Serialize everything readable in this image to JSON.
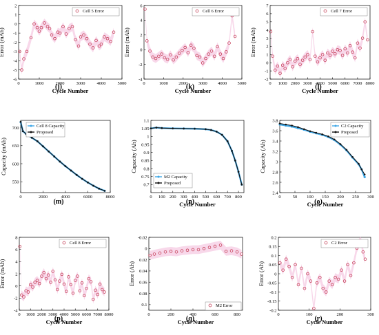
{
  "colors": {
    "error_marker": "#c0304a",
    "error_band": "#f3b8d8",
    "capacity_blue": "#3fa7e6",
    "proposed_black": "#111111"
  },
  "chart_data": [
    {
      "panel": "(j)",
      "type": "scatter",
      "legend": [
        "Cell 5 Error"
      ],
      "xlabel": "Cycle Number",
      "ylabel": "Error (mAh)",
      "xlim": [
        0,
        5000
      ],
      "ylim": [
        -6,
        2
      ],
      "xticks": [
        0,
        1000,
        2000,
        3000,
        4000,
        5000
      ],
      "yticks": [
        -6,
        -5,
        -4,
        -3,
        -2,
        -1,
        0,
        1,
        2
      ],
      "x": [
        50,
        150,
        250,
        400,
        600,
        750,
        900,
        1000,
        1100,
        1250,
        1400,
        1500,
        1600,
        1750,
        1900,
        2000,
        2150,
        2300,
        2450,
        2600,
        2750,
        2900,
        3000,
        3150,
        3300,
        3450,
        3600,
        3750,
        3900,
        4000,
        4150,
        4300,
        4450,
        4600
      ],
      "y": [
        -3.0,
        -5.0,
        -3.8,
        -3.0,
        -1.5,
        0.0,
        -0.4,
        -0.8,
        -0.4,
        0.1,
        -0.3,
        -0.5,
        -1.2,
        -1.6,
        -0.9,
        -1.0,
        -0.3,
        -1.1,
        -0.5,
        -0.3,
        -1.7,
        -2.4,
        -1.4,
        -1.2,
        -1.6,
        -2.2,
        -2.6,
        -1.8,
        -2.4,
        -2.2,
        -1.4,
        -1.6,
        -1.9,
        -0.9
      ]
    },
    {
      "panel": "(k)",
      "type": "scatter",
      "legend": [
        "Cell 6 Error"
      ],
      "xlabel": "Cycle Number",
      "ylabel": "Error (mAh)",
      "xlim": [
        0,
        5000
      ],
      "ylim": [
        -4,
        6
      ],
      "xticks": [
        0,
        1000,
        2000,
        3000,
        4000,
        5000
      ],
      "yticks": [
        -4,
        -2,
        0,
        2,
        4,
        6
      ],
      "x": [
        50,
        150,
        300,
        450,
        600,
        750,
        900,
        1050,
        1200,
        1350,
        1500,
        1650,
        1800,
        1950,
        2100,
        2250,
        2400,
        2550,
        2700,
        2850,
        3000,
        3150,
        3300,
        3450,
        3600,
        3750,
        3900,
        4050,
        4200,
        4350,
        4500,
        4650
      ],
      "y": [
        5.5,
        1.2,
        -0.2,
        -1.0,
        -1.2,
        -0.9,
        -0.6,
        -1.1,
        -1.3,
        -0.7,
        -1.4,
        -1.0,
        -0.5,
        -0.1,
        0.3,
        -0.4,
        0.6,
        0.2,
        -0.8,
        -1.0,
        -1.8,
        -1.2,
        -0.6,
        -0.2,
        -0.9,
        0.4,
        -0.6,
        -1.2,
        -0.3,
        0.9,
        4.6,
        1.8
      ]
    },
    {
      "panel": "(l)",
      "type": "scatter",
      "legend": [
        "Cell 7 Error"
      ],
      "xlabel": "Cycle Number",
      "ylabel": "Error (mAh)",
      "xlim": [
        0,
        8000
      ],
      "ylim": [
        -2,
        7
      ],
      "xticks": [
        0,
        1000,
        2000,
        3000,
        4000,
        5000,
        6000,
        7000,
        8000
      ],
      "yticks": [
        -2,
        -1,
        0,
        1,
        2,
        3,
        4,
        5,
        6,
        7
      ],
      "x": [
        50,
        200,
        400,
        600,
        800,
        1000,
        1200,
        1400,
        1600,
        1800,
        2000,
        2200,
        2400,
        2600,
        2800,
        3000,
        3200,
        3400,
        3600,
        3800,
        4000,
        4200,
        4400,
        4600,
        4800,
        5000,
        5200,
        5400,
        5600,
        5800,
        6000,
        6200,
        6400,
        6600,
        6800,
        7000,
        7200,
        7400,
        7600,
        7800
      ],
      "y": [
        3.8,
        0.8,
        -0.9,
        -0.4,
        -1.3,
        -0.3,
        -0.7,
        0.0,
        0.4,
        -0.5,
        0.2,
        0.5,
        -0.2,
        0.3,
        0.7,
        1.0,
        0.4,
        3.8,
        0.8,
        0.1,
        0.6,
        1.0,
        0.3,
        1.2,
        0.9,
        1.4,
        1.1,
        1.6,
        1.5,
        0.9,
        1.7,
        1.2,
        2.1,
        1.3,
        0.6,
        2.4,
        1.8,
        3.0,
        5.0,
        2.8
      ]
    },
    {
      "panel": "(m)",
      "type": "line",
      "legend": [
        "Cell 8 Capacity",
        "Proposed"
      ],
      "xlabel": "",
      "ylabel": "Capacity (mAh)",
      "xlim": [
        0,
        8000
      ],
      "ylim": [
        520,
        720
      ],
      "xticks": [
        0,
        2000,
        4000,
        6000,
        8000
      ],
      "yticks": [
        550,
        600,
        650,
        700
      ],
      "series": [
        {
          "name": "Cell 8 Capacity",
          "x": [
            0,
            200,
            500,
            1000,
            1500,
            2000,
            2500,
            3000,
            3500,
            4000,
            4500,
            5000,
            5500,
            6000,
            6500,
            7000,
            7500
          ],
          "y": [
            715,
            690,
            682,
            672,
            662,
            648,
            634,
            620,
            606,
            593,
            581,
            569,
            558,
            548,
            539,
            531,
            525
          ]
        },
        {
          "name": "Proposed",
          "x": [
            0,
            200,
            500,
            1000,
            1500,
            2000,
            2500,
            3000,
            3500,
            4000,
            4500,
            5000,
            5500,
            6000,
            6500,
            7000,
            7500
          ],
          "y": [
            716,
            690,
            682,
            672,
            662,
            648,
            634,
            620,
            606,
            593,
            581,
            569,
            558,
            548,
            539,
            531,
            525
          ]
        }
      ]
    },
    {
      "panel": "(n)",
      "type": "line",
      "legend": [
        "M2 Capacity",
        "Proposed"
      ],
      "xlabel": "Cycle Number",
      "ylabel": "Capacity (Ah)",
      "xlim": [
        0,
        850
      ],
      "ylim": [
        0.65,
        1.1
      ],
      "xticks": [
        0,
        100,
        200,
        300,
        400,
        500,
        600,
        700,
        800
      ],
      "yticks": [
        0.7,
        0.75,
        0.8,
        0.85,
        0.9,
        0.95,
        1.0,
        1.05,
        1.1
      ],
      "series": [
        {
          "name": "M2 Capacity",
          "x": [
            0,
            50,
            100,
            200,
            300,
            400,
            500,
            550,
            600,
            650,
            700,
            740,
            770,
            800,
            830
          ],
          "y": [
            1.05,
            1.055,
            1.052,
            1.05,
            1.049,
            1.048,
            1.045,
            1.04,
            1.03,
            1.01,
            0.97,
            0.91,
            0.85,
            0.78,
            0.7
          ]
        },
        {
          "name": "Proposed",
          "x": [
            0,
            50,
            100,
            200,
            300,
            400,
            500,
            550,
            600,
            650,
            700,
            740,
            770,
            800,
            830
          ],
          "y": [
            1.05,
            1.055,
            1.052,
            1.05,
            1.049,
            1.048,
            1.045,
            1.04,
            1.03,
            1.01,
            0.97,
            0.91,
            0.85,
            0.78,
            0.7
          ]
        }
      ]
    },
    {
      "panel": "(o)",
      "type": "line",
      "legend": [
        "C2 Capacity",
        "Proposed"
      ],
      "xlabel": "Cycle Number",
      "ylabel": "Capacity (Ah)",
      "xlim": [
        0,
        300
      ],
      "ylim": [
        2.4,
        3.8
      ],
      "xticks": [
        0,
        50,
        100,
        150,
        200,
        250,
        300
      ],
      "yticks": [
        2.4,
        2.6,
        2.8,
        3.0,
        3.2,
        3.4,
        3.6,
        3.8
      ],
      "series": [
        {
          "name": "C2 Capacity",
          "x": [
            0,
            20,
            40,
            60,
            80,
            100,
            120,
            140,
            160,
            180,
            200,
            220,
            240,
            260,
            270,
            280
          ],
          "y": [
            3.72,
            3.7,
            3.68,
            3.65,
            3.62,
            3.58,
            3.55,
            3.52,
            3.48,
            3.42,
            3.33,
            3.22,
            3.08,
            2.95,
            2.85,
            2.7
          ]
        },
        {
          "name": "Proposed",
          "x": [
            0,
            20,
            40,
            60,
            80,
            100,
            120,
            140,
            160,
            180,
            200,
            220,
            240,
            260,
            270,
            280
          ],
          "y": [
            3.74,
            3.72,
            3.7,
            3.67,
            3.63,
            3.59,
            3.56,
            3.53,
            3.49,
            3.43,
            3.34,
            3.23,
            3.09,
            2.96,
            2.85,
            2.75
          ]
        }
      ]
    },
    {
      "panel": "(p)",
      "type": "scatter",
      "legend": [
        "Cell 8 Error"
      ],
      "xlabel": "Cycle Number",
      "ylabel": "Error (mAh)",
      "xlim": [
        0,
        8000
      ],
      "ylim": [
        -4,
        8
      ],
      "xticks": [
        0,
        1000,
        2000,
        3000,
        4000,
        5000,
        6000,
        7000,
        8000
      ],
      "yticks": [
        -4,
        -2,
        0,
        2,
        4,
        6,
        8
      ],
      "x": [
        50,
        200,
        400,
        600,
        800,
        1000,
        1200,
        1400,
        1600,
        1800,
        2000,
        2200,
        2400,
        2600,
        2800,
        3000,
        3200,
        3400,
        3600,
        3800,
        4000,
        4200,
        4400,
        4600,
        4800,
        5000,
        5200,
        5400,
        5600,
        5800,
        6000,
        6200,
        6400,
        6600,
        6800,
        7000,
        7200,
        7400,
        7600
      ],
      "y": [
        6.5,
        -1.5,
        -1.8,
        -0.8,
        -1.0,
        0.2,
        -0.2,
        0.6,
        0.9,
        0.4,
        1.6,
        2.2,
        1.2,
        1.8,
        0.6,
        2.4,
        1.0,
        -0.6,
        0.8,
        1.9,
        0.3,
        -0.9,
        1.5,
        0.2,
        -1.2,
        0.9,
        1.6,
        -0.8,
        0.5,
        -1.6,
        -0.4,
        1.2,
        0.7,
        -2.2,
        -0.7,
        -1.4,
        0.3,
        -0.6,
        -1.0
      ]
    },
    {
      "panel": "(q)",
      "type": "scatter",
      "legend": [
        "M2 Error"
      ],
      "xlabel": "Cycle Number",
      "ylabel": "Error (Ah)",
      "xlim": [
        0,
        850
      ],
      "ylim": [
        -0.02,
        0.11
      ],
      "yticks_note": "axis inverted, negative values on top",
      "xticks": [
        0,
        200,
        400,
        600,
        800
      ],
      "yticks": [
        -0.02,
        0.0,
        0.02,
        0.04,
        0.06,
        0.08,
        0.1
      ],
      "x": [
        10,
        50,
        100,
        150,
        200,
        250,
        300,
        350,
        400,
        450,
        500,
        550,
        600,
        650,
        700,
        750,
        800,
        840
      ],
      "y": [
        0.012,
        0.01,
        0.008,
        0.006,
        0.005,
        0.006,
        0.004,
        0.003,
        0.002,
        0.002,
        0.0,
        -0.002,
        -0.004,
        -0.006,
        0.005,
        0.004,
        0.006,
        0.01
      ]
    },
    {
      "panel": "(r)",
      "type": "scatter",
      "legend": [
        "C2 Error"
      ],
      "xlabel": "Cycle Number",
      "ylabel": "Error (Ah)",
      "xlim": [
        0,
        300
      ],
      "ylim": [
        -0.2,
        0.2
      ],
      "xticks": [
        0,
        100,
        200,
        300
      ],
      "yticks": [
        -0.2,
        -0.15,
        -0.1,
        -0.05,
        0.0,
        0.05,
        0.1,
        0.15,
        0.2
      ],
      "x": [
        5,
        15,
        25,
        35,
        45,
        55,
        65,
        75,
        85,
        95,
        105,
        115,
        125,
        135,
        145,
        155,
        165,
        175,
        185,
        195,
        205,
        215,
        225,
        235,
        245,
        255,
        262,
        268,
        275,
        282
      ],
      "y": [
        0.06,
        0.02,
        0.08,
        0.04,
        -0.02,
        0.05,
        -0.06,
        0.03,
        -0.08,
        0.0,
        -0.04,
        -0.19,
        -0.05,
        -0.02,
        -0.08,
        -0.1,
        -0.04,
        -0.06,
        -0.02,
        -0.03,
        0.02,
        -0.04,
        0.05,
        -0.01,
        0.06,
        0.14,
        0.17,
        0.18,
        0.12,
        0.08
      ]
    }
  ],
  "figure": {
    "j_label": "(j)",
    "k_label": "(k)",
    "l_label": "(l)",
    "m_label": "(m)",
    "n_label": "(n)",
    "o_label": "(o)",
    "p_label": "(p)",
    "q_label": "(q)",
    "r_label": "(r)"
  }
}
